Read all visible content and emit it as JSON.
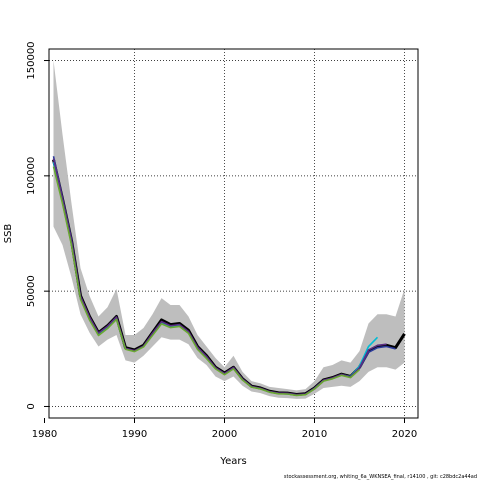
{
  "caption": "stockassessment.org, whiting_6a_WKNSEA_final, r14100 , git: c28bdc2a44ad",
  "chart_data": {
    "type": "line",
    "title": "",
    "xlabel": "Years",
    "ylabel": "SSB",
    "xlim": [
      1980.5,
      2021.5
    ],
    "ylim": [
      -5000,
      155000
    ],
    "xticks": [
      1980,
      1990,
      2000,
      2010,
      2020
    ],
    "yticks": [
      0,
      50000,
      100000,
      150000
    ],
    "grid": "dotted",
    "legend": "none",
    "band_color": "#bebebe",
    "band": {
      "x": [
        1981,
        1982,
        1983,
        1984,
        1985,
        1986,
        1987,
        1988,
        1989,
        1990,
        1991,
        1992,
        1993,
        1994,
        1995,
        1996,
        1997,
        1998,
        1999,
        2000,
        2001,
        2002,
        2003,
        2004,
        2005,
        2006,
        2007,
        2008,
        2009,
        2010,
        2011,
        2012,
        2013,
        2014,
        2015,
        2016,
        2017,
        2018,
        2019,
        2020
      ],
      "upper": [
        150000,
        118000,
        88000,
        60000,
        48000,
        39000,
        43000,
        51000,
        31000,
        31000,
        34000,
        40000,
        47000,
        44000,
        44000,
        39000,
        31000,
        26000,
        21000,
        17000,
        22000,
        15000,
        11000,
        10000,
        8500,
        8000,
        7500,
        7000,
        7500,
        11000,
        17000,
        18000,
        20000,
        19000,
        24000,
        36000,
        40000,
        40000,
        39000,
        51000
      ],
      "lower": [
        78000,
        70000,
        56000,
        40000,
        32000,
        26000,
        29000,
        31000,
        20000,
        19000,
        22000,
        26000,
        30000,
        29000,
        29000,
        27000,
        21000,
        18000,
        13000,
        11000,
        13000,
        9000,
        6500,
        5800,
        4500,
        3800,
        3600,
        3300,
        3400,
        5500,
        8000,
        8500,
        9000,
        8500,
        11000,
        15000,
        17000,
        17000,
        16000,
        19000
      ]
    },
    "series": [
      {
        "color": "#000000",
        "x": [
          1981,
          1982,
          1983,
          1984,
          1985,
          1986,
          1987,
          1988,
          1989,
          1990,
          1991,
          1992,
          1993,
          1994,
          1995,
          1996,
          1997,
          1998,
          1999,
          2000,
          2001,
          2002,
          2003,
          2004,
          2005,
          2006,
          2007,
          2008,
          2009,
          2010,
          2011,
          2012,
          2013,
          2014,
          2015,
          2016,
          2017,
          2018,
          2019,
          2020
        ],
        "values": [
          107000,
          90000,
          72000,
          48000,
          39000,
          32000,
          35000,
          39000,
          25500,
          24500,
          26500,
          32000,
          37500,
          35500,
          36000,
          33000,
          26000,
          22000,
          17000,
          14500,
          17000,
          12000,
          8800,
          8000,
          6600,
          5900,
          5800,
          5200,
          5500,
          8000,
          11500,
          12500,
          14000,
          13000,
          17000,
          24000,
          26000,
          26500,
          25500,
          31500
        ]
      },
      {
        "color": "#2b3a9a",
        "x": [
          1981,
          1982,
          1983,
          1984,
          1985,
          1986,
          1987,
          1988,
          1989,
          1990,
          1991,
          1992,
          1993,
          1994,
          1995,
          1996,
          1997,
          1998,
          1999,
          2000,
          2001,
          2002,
          2003,
          2004,
          2005,
          2006,
          2007,
          2008,
          2009,
          2010,
          2011,
          2012,
          2013,
          2014,
          2015,
          2016,
          2017,
          2018,
          2019
        ],
        "values": [
          108500,
          90500,
          72500,
          47500,
          38500,
          31500,
          34500,
          38500,
          25000,
          24000,
          26000,
          31500,
          36500,
          34800,
          35200,
          32200,
          25500,
          21500,
          16700,
          14200,
          16800,
          11800,
          8600,
          7800,
          6400,
          5700,
          5600,
          5000,
          5300,
          7800,
          11200,
          12200,
          13700,
          12700,
          16500,
          23500,
          25500,
          26000,
          25000
        ]
      },
      {
        "color": "#00bcd4",
        "x": [
          1981,
          1982,
          1983,
          1984,
          1985,
          1986,
          1987,
          1988,
          1989,
          1990,
          1991,
          1992,
          1993,
          1994,
          1995,
          1996,
          1997,
          1998,
          1999,
          2000,
          2001,
          2002,
          2003,
          2004,
          2005,
          2006,
          2007,
          2008,
          2009,
          2010,
          2011,
          2012,
          2013,
          2014,
          2015,
          2016,
          2017
        ],
        "values": [
          106000,
          89000,
          71000,
          47000,
          38000,
          31000,
          34000,
          38000,
          25000,
          24000,
          26000,
          31000,
          36000,
          34500,
          35000,
          32000,
          25000,
          21000,
          16500,
          14000,
          16500,
          11700,
          8500,
          7700,
          6300,
          5600,
          5500,
          4900,
          5200,
          7900,
          11300,
          12300,
          13800,
          13000,
          17500,
          26000,
          30000
        ]
      },
      {
        "color": "#5a2d82",
        "x": [
          1981,
          1982,
          1983,
          1984,
          1985,
          1986,
          1987,
          1988,
          1989,
          1990,
          1991,
          1992,
          1993,
          1994,
          1995,
          1996,
          1997,
          1998,
          1999,
          2000,
          2001,
          2002,
          2003,
          2004,
          2005,
          2006,
          2007,
          2008,
          2009,
          2010,
          2011,
          2012,
          2013,
          2014,
          2015,
          2016,
          2017,
          2018
        ],
        "values": [
          107500,
          90000,
          72000,
          47800,
          38800,
          31800,
          34800,
          38800,
          25200,
          24200,
          26200,
          31800,
          36800,
          35000,
          35500,
          32500,
          25700,
          21700,
          16800,
          14300,
          16900,
          11900,
          8700,
          7900,
          6500,
          5800,
          5700,
          5100,
          5400,
          7900,
          11400,
          12400,
          13900,
          12800,
          16800,
          24500,
          26500,
          27000
        ]
      },
      {
        "color": "#6aa832",
        "x": [
          1981,
          1982,
          1983,
          1984,
          1985,
          1986,
          1987,
          1988,
          1989,
          1990,
          1991,
          1992,
          1993,
          1994,
          1995,
          1996,
          1997,
          1998,
          1999,
          2000,
          2001,
          2002,
          2003,
          2004,
          2005,
          2006,
          2007,
          2008,
          2009,
          2010,
          2011,
          2012,
          2013,
          2014,
          2015
        ],
        "values": [
          104000,
          88000,
          70000,
          46500,
          37500,
          30800,
          33800,
          37800,
          24800,
          23800,
          25800,
          30800,
          35800,
          34200,
          34700,
          31700,
          24800,
          20800,
          16300,
          13800,
          16300,
          11500,
          8400,
          7600,
          6200,
          5500,
          5400,
          4800,
          5100,
          7600,
          11000,
          12000,
          13500,
          12500,
          16000
        ]
      }
    ]
  }
}
